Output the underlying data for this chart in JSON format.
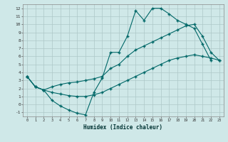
{
  "title": "",
  "xlabel": "Humidex (Indice chaleur)",
  "background_color": "#cfe8e8",
  "grid_color": "#adc8c8",
  "line_color": "#006868",
  "xlim": [
    -0.5,
    23.5
  ],
  "ylim": [
    -1.5,
    12.5
  ],
  "xticks": [
    0,
    1,
    2,
    3,
    4,
    5,
    6,
    7,
    8,
    9,
    10,
    11,
    12,
    13,
    14,
    15,
    16,
    17,
    18,
    19,
    20,
    21,
    22,
    23
  ],
  "yticks": [
    -1,
    0,
    1,
    2,
    3,
    4,
    5,
    6,
    7,
    8,
    9,
    10,
    11,
    12
  ],
  "line1_x": [
    0,
    1,
    2,
    3,
    4,
    5,
    6,
    7,
    8,
    9,
    10,
    11,
    12,
    13,
    14,
    15,
    16,
    17,
    18,
    19,
    20,
    21,
    22
  ],
  "line1_y": [
    3.5,
    2.2,
    1.8,
    0.5,
    -0.2,
    -0.7,
    -1.1,
    -1.3,
    1.5,
    3.3,
    6.5,
    6.5,
    8.5,
    11.7,
    10.5,
    12.0,
    12.0,
    11.3,
    10.5,
    10.0,
    9.5,
    7.5,
    5.5
  ],
  "line2_x": [
    0,
    1,
    2,
    3,
    4,
    5,
    6,
    7,
    8,
    9,
    10,
    11,
    12,
    13,
    14,
    15,
    16,
    17,
    18,
    19,
    20,
    21,
    22,
    23
  ],
  "line2_y": [
    3.5,
    2.2,
    1.8,
    2.2,
    2.5,
    2.7,
    2.8,
    3.0,
    3.2,
    3.5,
    4.5,
    5.0,
    6.0,
    6.8,
    7.3,
    7.8,
    8.3,
    8.8,
    9.3,
    9.8,
    10.0,
    8.5,
    6.5,
    5.5
  ],
  "line3_x": [
    0,
    1,
    2,
    3,
    4,
    5,
    6,
    7,
    8,
    9,
    10,
    11,
    12,
    13,
    14,
    15,
    16,
    17,
    18,
    19,
    20,
    21,
    22,
    23
  ],
  "line3_y": [
    3.5,
    2.2,
    1.8,
    1.5,
    1.3,
    1.1,
    1.0,
    1.0,
    1.2,
    1.5,
    2.0,
    2.5,
    3.0,
    3.5,
    4.0,
    4.5,
    5.0,
    5.5,
    5.8,
    6.0,
    6.2,
    6.0,
    5.8,
    5.5
  ]
}
